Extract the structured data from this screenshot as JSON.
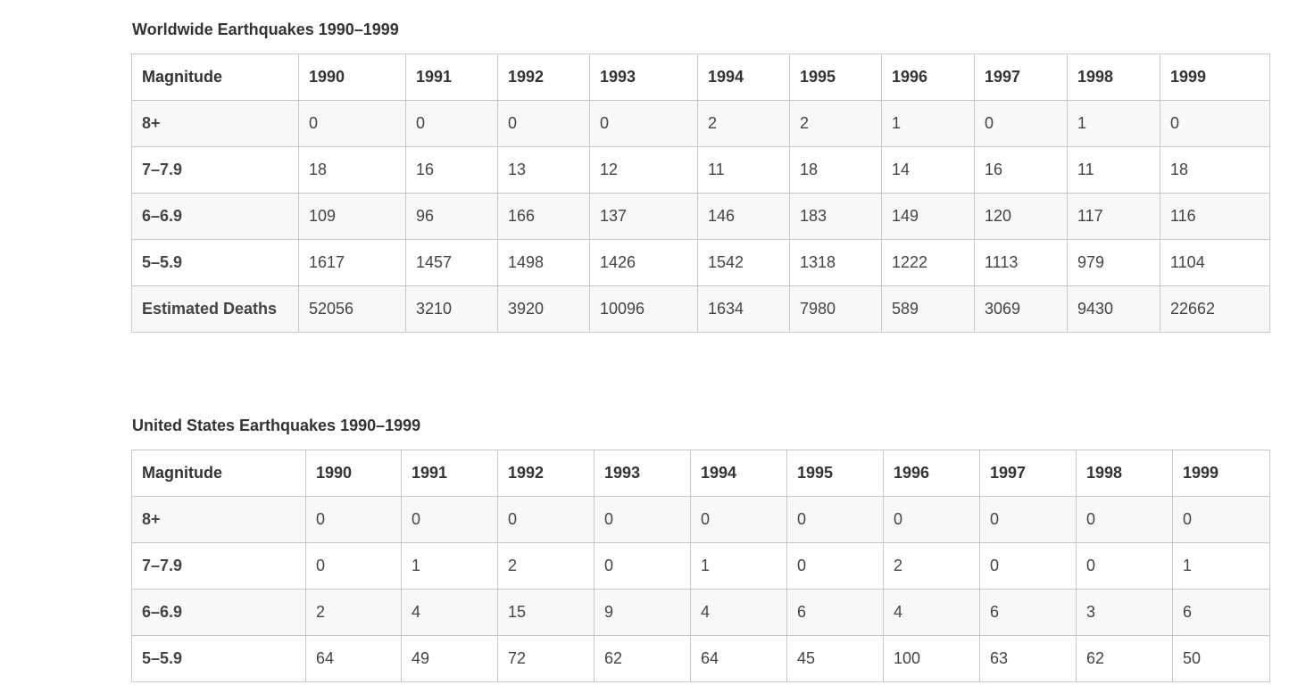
{
  "tables": [
    {
      "title": "Worldwide Earthquakes 1990–1999",
      "header": [
        "Magnitude",
        "1990",
        "1991",
        "1992",
        "1993",
        "1994",
        "1995",
        "1996",
        "1997",
        "1998",
        "1999"
      ],
      "rows": [
        [
          "8+",
          "0",
          "0",
          "0",
          "0",
          "2",
          "2",
          "1",
          "0",
          "1",
          "0"
        ],
        [
          "7–7.9",
          "18",
          "16",
          "13",
          "12",
          "11",
          "18",
          "14",
          "16",
          "11",
          "18"
        ],
        [
          "6–6.9",
          "109",
          "96",
          "166",
          "137",
          "146",
          "183",
          "149",
          "120",
          "117",
          "116"
        ],
        [
          "5–5.9",
          "1617",
          "1457",
          "1498",
          "1426",
          "1542",
          "1318",
          "1222",
          "1113",
          "979",
          "1104"
        ],
        [
          "Estimated Deaths",
          "52056",
          "3210",
          "3920",
          "10096",
          "1634",
          "7980",
          "589",
          "3069",
          "9430",
          "22662"
        ]
      ]
    },
    {
      "title": "United States Earthquakes 1990–1999",
      "header": [
        "Magnitude",
        "1990",
        "1991",
        "1992",
        "1993",
        "1994",
        "1995",
        "1996",
        "1997",
        "1998",
        "1999"
      ],
      "rows": [
        [
          "8+",
          "0",
          "0",
          "0",
          "0",
          "0",
          "0",
          "0",
          "0",
          "0",
          "0"
        ],
        [
          "7–7.9",
          "0",
          "1",
          "2",
          "0",
          "1",
          "0",
          "2",
          "0",
          "0",
          "1"
        ],
        [
          "6–6.9",
          "2",
          "4",
          "15",
          "9",
          "4",
          "6",
          "4",
          "6",
          "3",
          "6"
        ],
        [
          "5–5.9",
          "64",
          "49",
          "72",
          "62",
          "64",
          "45",
          "100",
          "63",
          "62",
          "50"
        ]
      ]
    }
  ]
}
